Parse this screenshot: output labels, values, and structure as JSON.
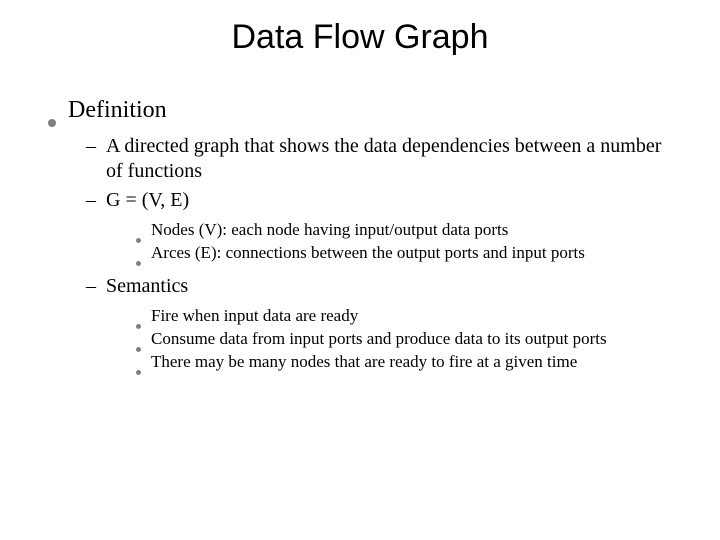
{
  "title": "Data Flow Graph",
  "level1": {
    "text": "Definition"
  },
  "def": {
    "item1": "A directed graph that shows the data dependencies between a number of functions",
    "item2": "G = (V, E)",
    "sub1": "Nodes (V): each node having input/output data ports",
    "sub2": "Arces (E): connections between the output ports and input ports"
  },
  "sem": {
    "heading": "Semantics",
    "item1": "Fire when input data are ready",
    "item2": "Consume data from input ports and produce data to its output ports",
    "item3": "There may be many nodes that are ready to fire at a given time"
  },
  "colors": {
    "background": "#ffffff",
    "text": "#000000",
    "bullet": "#808080"
  },
  "fonts": {
    "title_family": "Arial",
    "title_size_pt": 34,
    "body_family": "Times New Roman",
    "level1_size_pt": 24,
    "level2_size_pt": 20,
    "level3_size_pt": 17
  }
}
